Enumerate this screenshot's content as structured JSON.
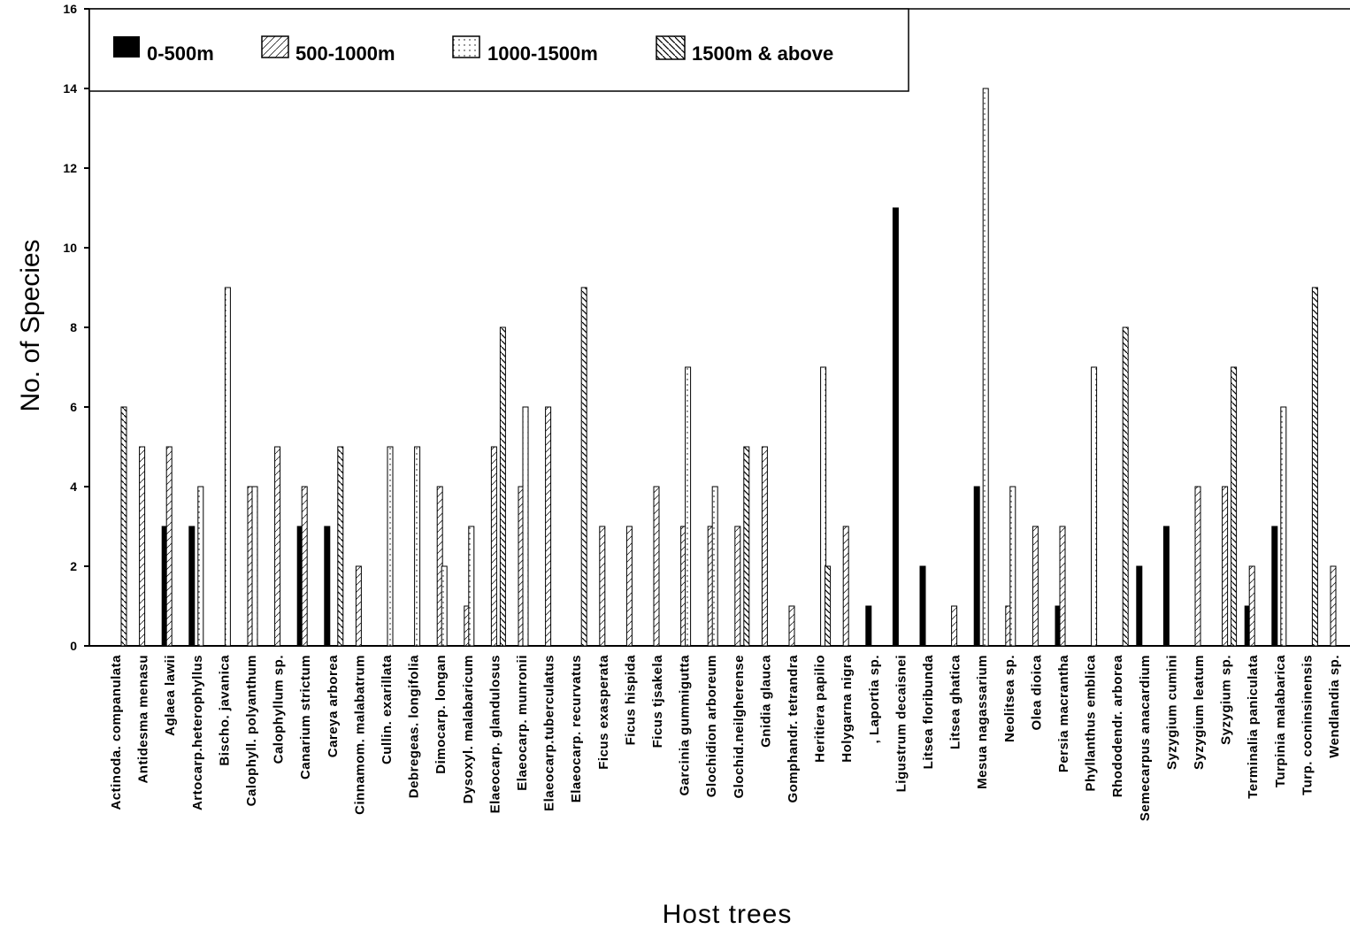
{
  "chart_data": {
    "type": "bar",
    "title": "",
    "xlabel": "Host trees",
    "ylabel": "No. of Species",
    "ylim": [
      0,
      16
    ],
    "yticks": [
      "0",
      "2",
      "4",
      "6",
      "8",
      "10",
      "12",
      "14",
      "16"
    ],
    "legend_position": "top-left",
    "categories": [
      "Actinoda. companulata",
      "Antidesma menasu",
      "Aglaea lawii",
      "Artocarp.heterophyllus",
      "Bischo. javanica",
      "Calophyll. polyanthum",
      "Calophyllum sp.",
      "Canarium strictum",
      "Careya arborea",
      "Cinnamom. malabatrum",
      "Cullin. exarillata",
      "Debregeas. longifolia",
      "Dimocarp. longan",
      "Dysoxyl. malabaricum",
      "Elaeocarp. glandulosus",
      "Elaeocarp. munronii",
      "Elaeocarp.tuberculatus",
      "Elaeocarp. recurvatus",
      "Ficus exasperata",
      "Ficus hispida",
      "Ficus tjsakela",
      "Garcinia gummigutta",
      "Glochidion arboreum",
      "Glochid.neilgherense",
      "Gnidia glauca",
      "Gomphandr. tetrandra",
      "Heritiera papilio",
      "Holygarna nigra",
      ", Laportia sp.",
      "Ligustrum decaisnei",
      "Litsea floribunda",
      "Litsea ghatica",
      "Mesua nagassarium",
      "Neolitsea sp.",
      "Olea dioica",
      "Persia macrantha",
      "Phyllanthus emblica",
      "Rhododendr. arborea",
      "Semecarpus anacardium",
      "Syzygium cumini",
      "Syzygium leatum",
      "Syzygium sp.",
      "Terminalia paniculata",
      "Turpinia malabarica",
      "Turp. cocninsinensis",
      "Wendlandia sp."
    ],
    "series": [
      {
        "name": "0-500m",
        "color": "#000000",
        "values": [
          0,
          0,
          3,
          3,
          0,
          0,
          0,
          3,
          3,
          0,
          0,
          0,
          0,
          0,
          0,
          0,
          0,
          0,
          0,
          0,
          0,
          0,
          0,
          0,
          0,
          0,
          0,
          0,
          1,
          11,
          2,
          0,
          4,
          0,
          0,
          1,
          0,
          0,
          2,
          3,
          0,
          0,
          1,
          3,
          0,
          0
        ]
      },
      {
        "name": "500-1000m",
        "color": "#000000",
        "values": [
          0,
          5,
          5,
          0,
          0,
          4,
          5,
          4,
          0,
          2,
          0,
          0,
          4,
          1,
          5,
          4,
          6,
          0,
          3,
          3,
          4,
          3,
          3,
          3,
          5,
          1,
          0,
          3,
          0,
          0,
          0,
          1,
          0,
          1,
          3,
          3,
          0,
          0,
          0,
          0,
          4,
          4,
          2,
          0,
          0,
          2
        ]
      },
      {
        "name": "1000-1500m",
        "color": "#000000",
        "values": [
          0,
          0,
          0,
          4,
          9,
          4,
          0,
          0,
          0,
          0,
          5,
          5,
          2,
          3,
          0,
          6,
          0,
          0,
          0,
          0,
          0,
          7,
          4,
          0,
          0,
          0,
          7,
          0,
          0,
          0,
          0,
          0,
          14,
          4,
          0,
          0,
          7,
          0,
          0,
          0,
          0,
          0,
          0,
          6,
          0,
          0
        ]
      },
      {
        "name": "1500m & above",
        "color": "#000000",
        "values": [
          6,
          0,
          0,
          0,
          0,
          0,
          0,
          0,
          5,
          0,
          0,
          0,
          0,
          0,
          8,
          0,
          0,
          9,
          0,
          0,
          0,
          0,
          0,
          5,
          0,
          0,
          2,
          0,
          0,
          0,
          0,
          0,
          0,
          0,
          0,
          0,
          0,
          8,
          0,
          0,
          0,
          7,
          0,
          0,
          9,
          0
        ]
      }
    ]
  }
}
